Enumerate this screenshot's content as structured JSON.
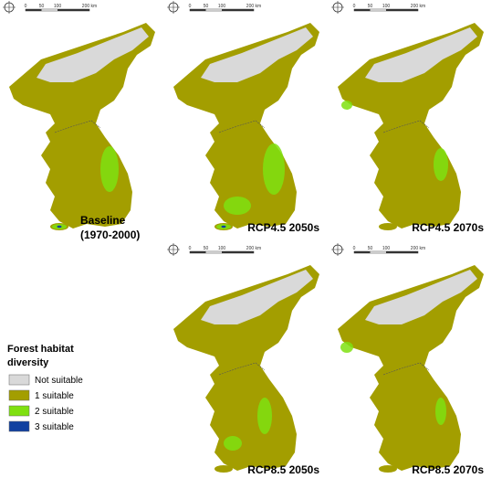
{
  "scale_bar": {
    "ticks": [
      "0",
      "50",
      "100",
      "200 km"
    ]
  },
  "panels": [
    {
      "label": [
        "Baseline",
        "(1970-2000)"
      ]
    },
    {
      "label": [
        "RCP4.5 2050s"
      ]
    },
    {
      "label": [
        "RCP4.5 2070s"
      ]
    },
    {
      "label": [
        "RCP8.5 2050s"
      ]
    },
    {
      "label": [
        "RCP8.5 2070s"
      ]
    }
  ],
  "legend": {
    "title": [
      "Forest habitat",
      "diversity"
    ],
    "items": [
      {
        "label": "Not suitable",
        "color": "#d9d9d9"
      },
      {
        "label": "1 suitable",
        "color": "#a39e00"
      },
      {
        "label": "2 suitable",
        "color": "#7fe010"
      },
      {
        "label": "3 suitable",
        "color": "#1040a0"
      }
    ]
  }
}
